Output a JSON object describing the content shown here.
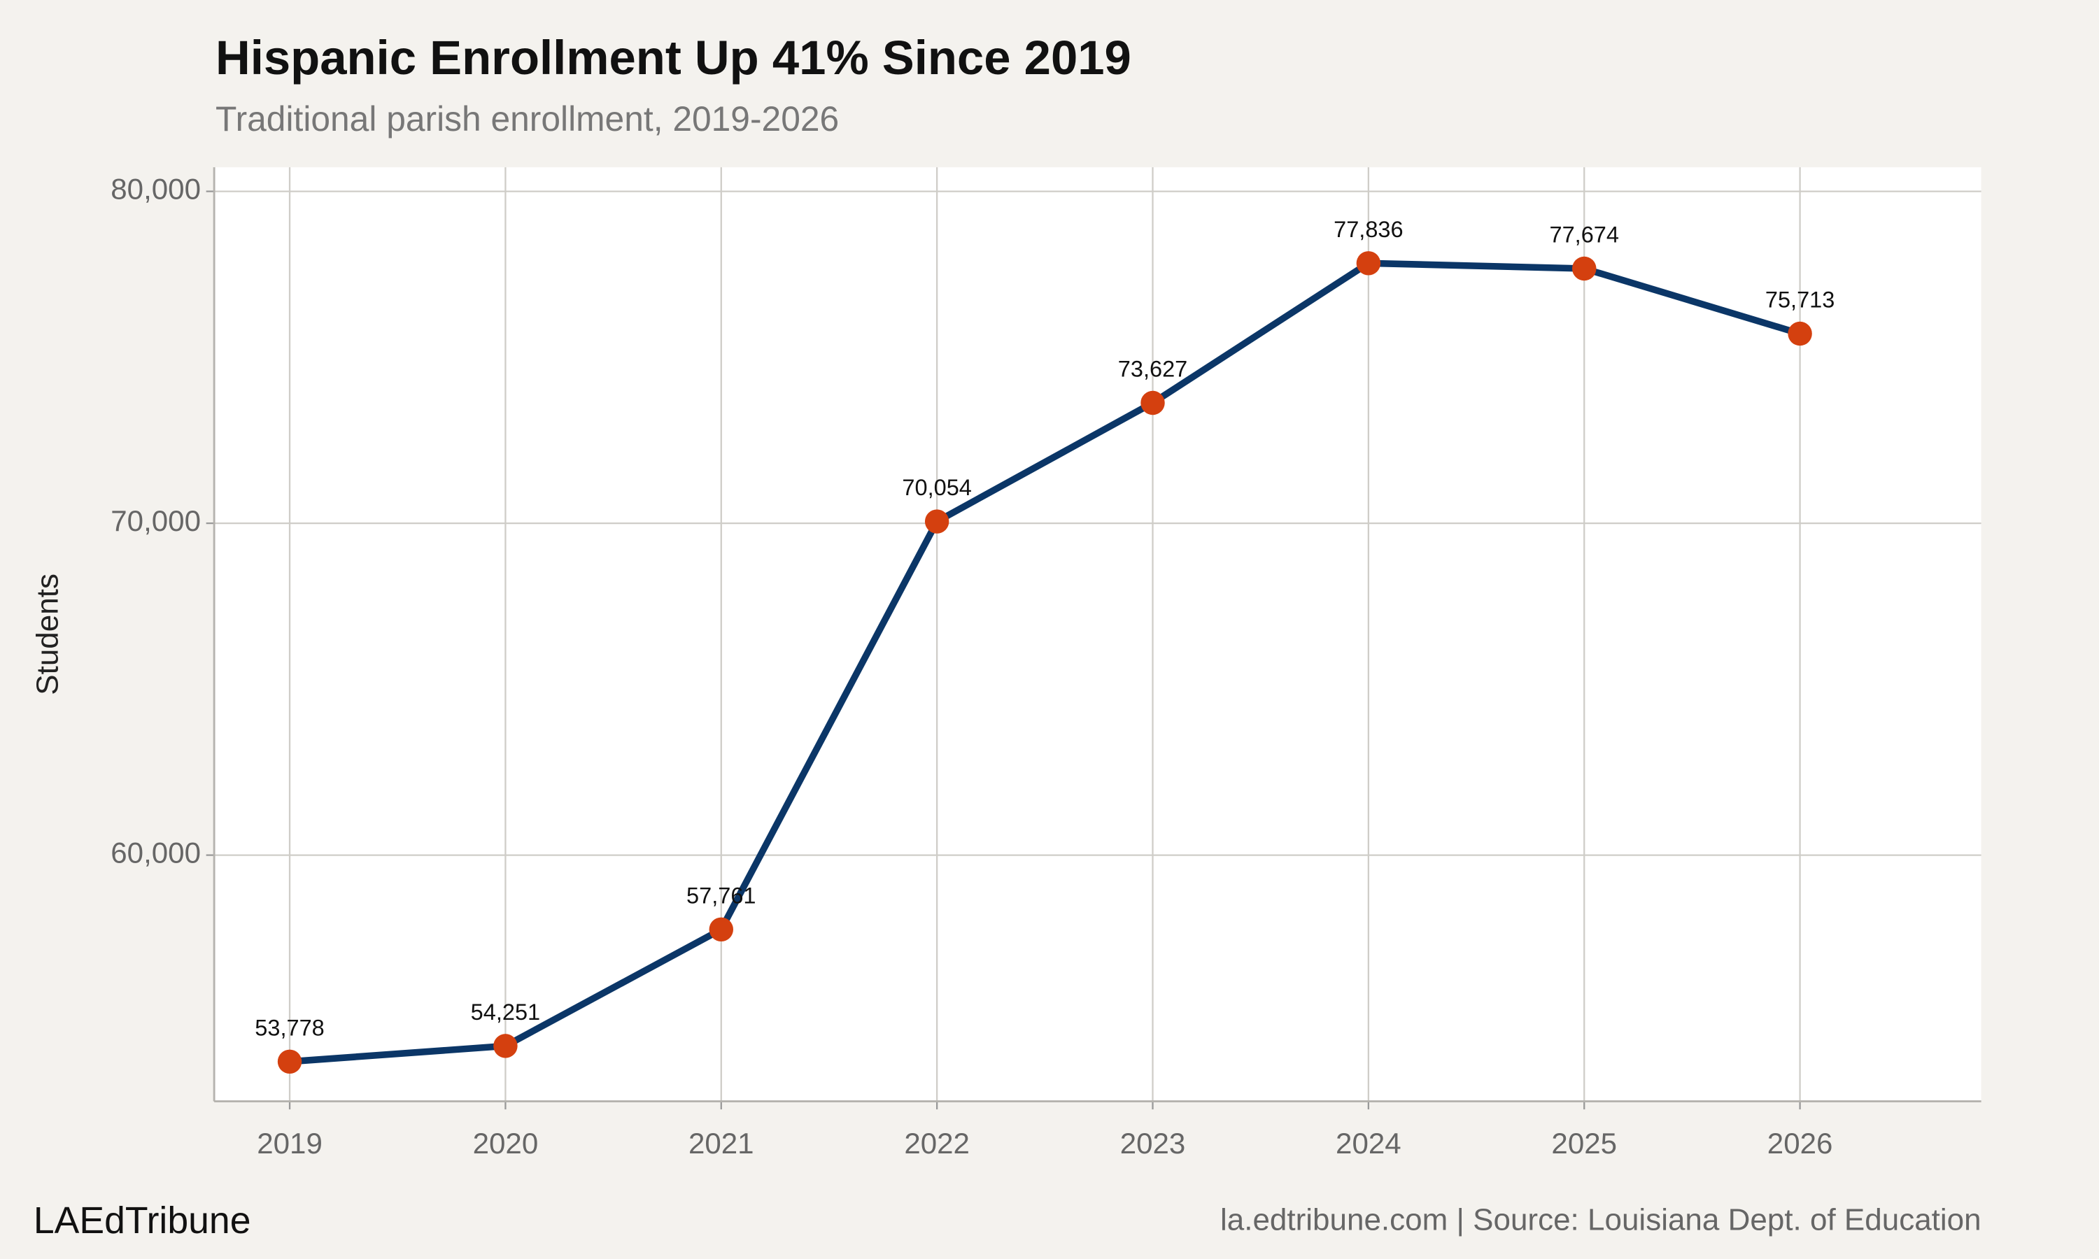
{
  "chart_data": {
    "type": "line",
    "title": "Hispanic Enrollment Up 41% Since 2019",
    "subtitle": "Traditional parish enrollment, 2019-2026",
    "y_label": "Students",
    "brand": "LAEdTribune",
    "caption": "la.edtribune.com | Source: Louisiana Dept. of Education",
    "x": [
      2019,
      2020,
      2021,
      2022,
      2023,
      2024,
      2025,
      2026
    ],
    "xlim": [
      2018.65,
      2026.84
    ],
    "xticks": [
      2019,
      2020,
      2021,
      2022,
      2023,
      2024,
      2025,
      2026
    ],
    "ylim": [
      52581,
      80726
    ],
    "yticks": [
      {
        "value": 60000,
        "label": "60,000"
      },
      {
        "value": 70000,
        "label": "70,000"
      },
      {
        "value": 80000,
        "label": "80,000"
      }
    ],
    "grid": true,
    "series": [
      {
        "color": "#0b3667",
        "marker_color": "#d4400f",
        "values": [
          53778,
          54251,
          57761,
          70054,
          73627,
          77836,
          77674,
          75713
        ],
        "value_labels": [
          "53,778",
          "54,251",
          "57,761",
          "70,054",
          "73,627",
          "77,836",
          "77,674",
          "75,713"
        ]
      }
    ]
  }
}
